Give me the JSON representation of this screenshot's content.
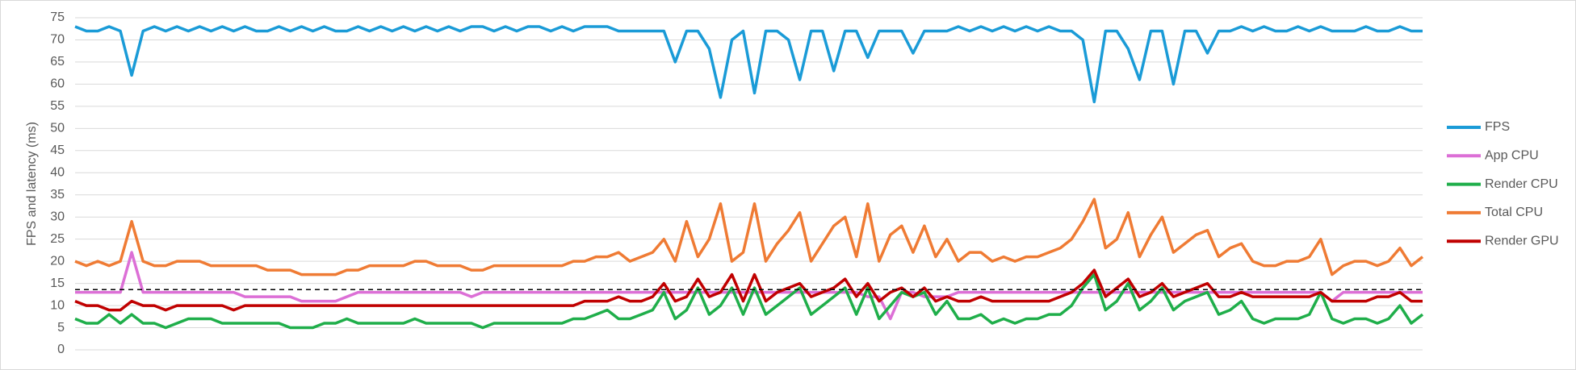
{
  "chart_data": {
    "type": "line",
    "y_label": "FPS and latency (ms)",
    "ylim": [
      0,
      75
    ],
    "yticks": [
      0,
      5,
      10,
      15,
      20,
      25,
      30,
      35,
      40,
      45,
      50,
      55,
      60,
      65,
      70,
      75
    ],
    "grid": true,
    "legend": "right",
    "reference_line": 13.6,
    "series": [
      {
        "name": "FPS",
        "color": "#1a9bd7",
        "values": [
          73,
          72,
          72,
          73,
          72,
          62,
          72,
          73,
          72,
          73,
          72,
          73,
          72,
          73,
          72,
          73,
          72,
          72,
          73,
          72,
          73,
          72,
          73,
          72,
          72,
          73,
          72,
          73,
          72,
          73,
          72,
          73,
          72,
          73,
          72,
          73,
          73,
          72,
          73,
          72,
          73,
          73,
          72,
          73,
          72,
          73,
          73,
          73,
          72,
          72,
          72,
          72,
          72,
          65,
          72,
          72,
          68,
          57,
          70,
          72,
          58,
          72,
          72,
          70,
          61,
          72,
          72,
          63,
          72,
          72,
          66,
          72,
          72,
          72,
          67,
          72,
          72,
          72,
          73,
          72,
          73,
          72,
          73,
          72,
          73,
          72,
          73,
          72,
          72,
          70,
          56,
          72,
          72,
          68,
          61,
          72,
          72,
          60,
          72,
          72,
          67,
          72,
          72,
          73,
          72,
          73,
          72,
          72,
          73,
          72,
          73,
          72,
          72,
          72,
          73,
          72,
          72,
          73,
          72,
          72
        ]
      },
      {
        "name": "App CPU",
        "color": "#dc6fd6",
        "values": [
          13,
          13,
          13,
          13,
          13,
          22,
          13,
          13,
          13,
          13,
          13,
          13,
          13,
          13,
          13,
          12,
          12,
          12,
          12,
          12,
          11,
          11,
          11,
          11,
          12,
          13,
          13,
          13,
          13,
          13,
          13,
          13,
          13,
          13,
          13,
          12,
          13,
          13,
          13,
          13,
          13,
          13,
          13,
          13,
          13,
          13,
          13,
          13,
          13,
          13,
          13,
          13,
          13,
          13,
          13,
          13,
          13,
          13,
          13,
          13,
          13,
          13,
          13,
          13,
          13,
          13,
          13,
          13,
          13,
          13,
          12,
          12,
          7,
          13,
          13,
          12,
          12,
          12,
          13,
          13,
          13,
          13,
          13,
          13,
          13,
          13,
          13,
          13,
          13,
          13,
          13,
          13,
          13,
          13,
          13,
          13,
          13,
          13,
          13,
          13,
          13,
          13,
          13,
          13,
          13,
          13,
          13,
          13,
          13,
          13,
          13,
          11,
          13,
          13,
          13,
          13,
          13,
          13,
          13,
          13
        ]
      },
      {
        "name": "Render CPU",
        "color": "#1fae4a",
        "values": [
          7,
          6,
          6,
          8,
          6,
          8,
          6,
          6,
          5,
          6,
          7,
          7,
          7,
          6,
          6,
          6,
          6,
          6,
          6,
          5,
          5,
          5,
          6,
          6,
          7,
          6,
          6,
          6,
          6,
          6,
          7,
          6,
          6,
          6,
          6,
          6,
          5,
          6,
          6,
          6,
          6,
          6,
          6,
          6,
          7,
          7,
          8,
          9,
          7,
          7,
          8,
          9,
          13,
          7,
          9,
          14,
          8,
          10,
          14,
          8,
          14,
          8,
          10,
          12,
          14,
          8,
          10,
          12,
          14,
          8,
          14,
          7,
          10,
          13,
          12,
          13,
          8,
          11,
          7,
          7,
          8,
          6,
          7,
          6,
          7,
          7,
          8,
          8,
          10,
          14,
          17,
          9,
          11,
          15,
          9,
          11,
          14,
          9,
          11,
          12,
          13,
          8,
          9,
          11,
          7,
          6,
          7,
          7,
          7,
          8,
          13,
          7,
          6,
          7,
          7,
          6,
          7,
          10,
          6,
          8
        ]
      },
      {
        "name": "Total CPU",
        "color": "#ef7b34",
        "values": [
          20,
          19,
          20,
          19,
          20,
          29,
          20,
          19,
          19,
          20,
          20,
          20,
          19,
          19,
          19,
          19,
          19,
          18,
          18,
          18,
          17,
          17,
          17,
          17,
          18,
          18,
          19,
          19,
          19,
          19,
          20,
          20,
          19,
          19,
          19,
          18,
          18,
          19,
          19,
          19,
          19,
          19,
          19,
          19,
          20,
          20,
          21,
          21,
          22,
          20,
          21,
          22,
          25,
          20,
          29,
          21,
          25,
          33,
          20,
          22,
          33,
          20,
          24,
          27,
          31,
          20,
          24,
          28,
          30,
          21,
          33,
          20,
          26,
          28,
          22,
          28,
          21,
          25,
          20,
          22,
          22,
          20,
          21,
          20,
          21,
          21,
          22,
          23,
          25,
          29,
          34,
          23,
          25,
          31,
          21,
          26,
          30,
          22,
          24,
          26,
          27,
          21,
          23,
          24,
          20,
          19,
          19,
          20,
          20,
          21,
          25,
          17,
          19,
          20,
          20,
          19,
          20,
          23,
          19,
          21
        ]
      },
      {
        "name": "Render GPU",
        "color": "#c00000",
        "values": [
          11,
          10,
          10,
          9,
          9,
          11,
          10,
          10,
          9,
          10,
          10,
          10,
          10,
          10,
          9,
          10,
          10,
          10,
          10,
          10,
          10,
          10,
          10,
          10,
          10,
          10,
          10,
          10,
          10,
          10,
          10,
          10,
          10,
          10,
          10,
          10,
          10,
          10,
          10,
          10,
          10,
          10,
          10,
          10,
          10,
          11,
          11,
          11,
          12,
          11,
          11,
          12,
          15,
          11,
          12,
          16,
          12,
          13,
          17,
          11,
          17,
          11,
          13,
          14,
          15,
          12,
          13,
          14,
          16,
          12,
          15,
          11,
          13,
          14,
          12,
          14,
          11,
          12,
          11,
          11,
          12,
          11,
          11,
          11,
          11,
          11,
          11,
          12,
          13,
          15,
          18,
          12,
          14,
          16,
          12,
          13,
          15,
          12,
          13,
          14,
          15,
          12,
          12,
          13,
          12,
          12,
          12,
          12,
          12,
          12,
          13,
          11,
          11,
          11,
          11,
          12,
          12,
          13,
          11,
          11
        ]
      }
    ]
  }
}
